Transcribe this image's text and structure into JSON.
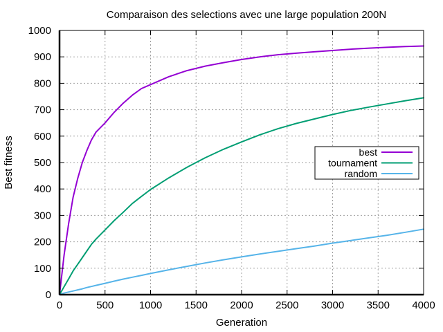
{
  "chart_data": {
    "type": "line",
    "title": "Comparaison des selections avec une large population 200N",
    "xlabel": "Generation",
    "ylabel": "Best fitness",
    "xlim": [
      0,
      4000
    ],
    "ylim": [
      0,
      1000
    ],
    "xticks": [
      0,
      500,
      1000,
      1500,
      2000,
      2500,
      3000,
      3500,
      4000
    ],
    "yticks": [
      0,
      100,
      200,
      300,
      400,
      500,
      600,
      700,
      800,
      900,
      1000
    ],
    "grid": true,
    "legend_position": "right",
    "x": [
      0,
      50,
      100,
      150,
      200,
      250,
      300,
      350,
      400,
      500,
      600,
      700,
      800,
      900,
      1000,
      1200,
      1400,
      1600,
      1800,
      2000,
      2200,
      2400,
      2600,
      2800,
      3000,
      3200,
      3400,
      3600,
      3800,
      4000
    ],
    "series": [
      {
        "name": "best",
        "color": "#9400d3",
        "values": [
          0,
          150,
          270,
          370,
          440,
          500,
          545,
          585,
          615,
          650,
          690,
          725,
          755,
          780,
          795,
          825,
          848,
          865,
          878,
          890,
          900,
          908,
          914,
          919,
          924,
          929,
          933,
          936,
          939,
          941
        ]
      },
      {
        "name": "tournament",
        "color": "#009e73",
        "values": [
          0,
          30,
          60,
          90,
          115,
          140,
          165,
          190,
          210,
          245,
          280,
          312,
          345,
          372,
          398,
          442,
          482,
          518,
          550,
          578,
          605,
          628,
          648,
          665,
          682,
          697,
          710,
          722,
          734,
          745
        ]
      },
      {
        "name": "random",
        "color": "#56b4e9",
        "values": [
          0,
          6,
          10,
          14,
          18,
          22,
          27,
          31,
          35,
          43,
          51,
          59,
          66,
          73,
          80,
          94,
          107,
          120,
          132,
          143,
          154,
          164,
          174,
          184,
          195,
          205,
          215,
          225,
          236,
          248
        ]
      }
    ]
  }
}
